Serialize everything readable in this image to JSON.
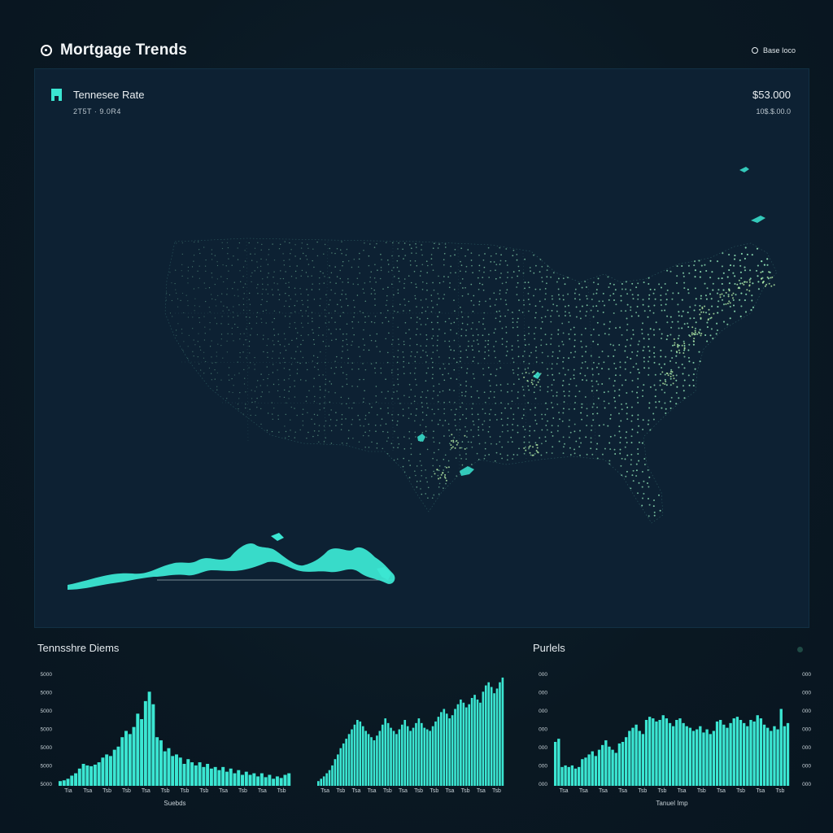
{
  "header": {
    "title": "Mortgage Trends",
    "right_label": "Base Ioco"
  },
  "map_panel": {
    "title": "Tennesee Rate",
    "subtitle": "2T5T · 9.0R4",
    "value": "$53.000",
    "value_sub": "10$.$.00.0"
  },
  "colors": {
    "accent": "#3be6d2",
    "map_dot": "#8fe0b4",
    "panel_bg": "#0d2133",
    "page_bg": "#0a1822"
  },
  "left_section": {
    "title": "Tennsshre Diems",
    "xlabel": "Suebds"
  },
  "right_section": {
    "title": "Purlels",
    "xlabel": "Tanuel Imp"
  },
  "chart_data": [
    {
      "type": "bar",
      "title": "Tennsshre Diems",
      "xlabel": "Suebds",
      "ylabel": "",
      "yticks": [
        "5000",
        "5000",
        "5000",
        "5000",
        "5000",
        "5000",
        "5000"
      ],
      "xticks": [
        "Tia",
        "Tsa",
        "Tsb",
        "Tsb",
        "Tsa",
        "Tsb",
        "Tsb",
        "Tsb",
        "Tsa",
        "Tsb",
        "Tsa",
        "Tsb"
      ],
      "values": [
        6,
        7,
        9,
        13,
        16,
        22,
        28,
        26,
        25,
        27,
        30,
        36,
        40,
        38,
        46,
        50,
        62,
        70,
        66,
        75,
        92,
        85,
        108,
        120,
        104,
        62,
        58,
        44,
        48,
        38,
        40,
        36,
        28,
        34,
        30,
        26,
        30,
        24,
        28,
        22,
        24,
        20,
        24,
        18,
        22,
        16,
        20,
        14,
        18,
        14,
        16,
        12,
        16,
        11,
        14,
        9,
        12,
        10,
        14,
        16
      ],
      "ylim": [
        0,
        140
      ]
    },
    {
      "type": "bar",
      "title": "",
      "xlabel": "",
      "xticks": [
        "Tsa",
        "Tsb",
        "Tsa",
        "Tsa",
        "Tsb",
        "Tsa",
        "Tsb",
        "Tsb",
        "Tsa",
        "Tsb",
        "Tsa",
        "Tsb"
      ],
      "values": [
        6,
        9,
        12,
        16,
        20,
        26,
        34,
        40,
        48,
        54,
        60,
        66,
        72,
        78,
        84,
        82,
        76,
        70,
        66,
        62,
        58,
        64,
        70,
        78,
        86,
        80,
        74,
        70,
        66,
        72,
        78,
        84,
        76,
        70,
        74,
        80,
        86,
        80,
        74,
        72,
        70,
        76,
        82,
        88,
        94,
        98,
        92,
        86,
        90,
        98,
        104,
        110,
        106,
        100,
        104,
        112,
        116,
        110,
        106,
        120,
        128,
        132,
        126,
        118,
        124,
        132,
        138
      ],
      "ylim": [
        0,
        140
      ]
    },
    {
      "type": "bar",
      "title": "Purlels",
      "xlabel": "Tanuel Imp",
      "yticks_left": [
        "000",
        "000",
        "000",
        "000",
        "000",
        "000",
        "000"
      ],
      "yticks_right": [
        "000",
        "000",
        "000",
        "000",
        "000",
        "000",
        "000"
      ],
      "xticks": [
        "Tsa",
        "Tsa",
        "Tsa",
        "Tsa",
        "Tsb",
        "Tsb",
        "Tsa",
        "Tsb",
        "Tsa",
        "Tsb",
        "Tsa",
        "Tsb"
      ],
      "values": [
        56,
        60,
        24,
        26,
        24,
        26,
        22,
        24,
        34,
        36,
        40,
        44,
        38,
        46,
        52,
        58,
        50,
        46,
        42,
        54,
        56,
        62,
        70,
        74,
        78,
        70,
        66,
        84,
        88,
        86,
        82,
        84,
        90,
        86,
        80,
        76,
        84,
        86,
        80,
        76,
        74,
        70,
        72,
        76,
        68,
        72,
        66,
        70,
        82,
        84,
        78,
        74,
        80,
        86,
        88,
        84,
        80,
        76,
        84,
        82,
        90,
        86,
        78,
        74,
        70,
        76,
        72,
        98,
        76,
        80
      ],
      "ylim": [
        0,
        140
      ]
    }
  ]
}
